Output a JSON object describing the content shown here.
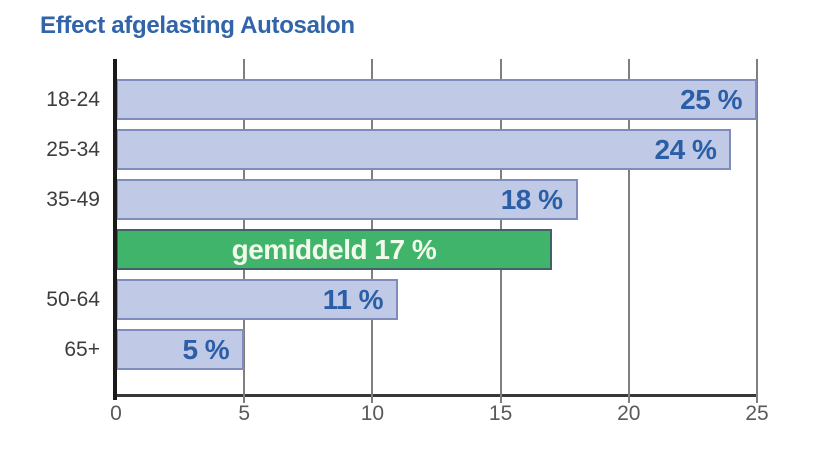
{
  "title": "Effect afgelasting Autosalon",
  "chart_data": {
    "type": "bar",
    "orientation": "horizontal",
    "title": "Effect afgelasting Autosalon",
    "categories": [
      "18-24",
      "25-34",
      "35-49",
      "",
      "50-64",
      "65+"
    ],
    "values": [
      25,
      24,
      18,
      17,
      11,
      5
    ],
    "bar_labels": [
      "25 %",
      "24 %",
      "18 %",
      "gemiddeld 17 %",
      "11 %",
      "5 %"
    ],
    "highlight_index": 3,
    "highlight_name": "gemiddeld",
    "xlim": [
      0,
      25
    ],
    "x_ticks": [
      "0",
      "5",
      "10",
      "15",
      "20",
      "25"
    ],
    "grid": true,
    "legend": false,
    "xlabel": "",
    "ylabel": ""
  },
  "colors": {
    "title_color": "#3164a8",
    "bar_fill": "#c0c9e5",
    "bar_border": "#7e8dbe",
    "highlight_fill": "#40b46a",
    "highlight_border": "#42616b",
    "highlight_text": "#f2faec",
    "value_text": "#2a5fa8",
    "category_text": "#3d3d3d",
    "tick_text": "#5a5a5a",
    "gridline": "#7f7f7f",
    "axis_line": "#383838",
    "y_axis": "#1a1a1a"
  }
}
